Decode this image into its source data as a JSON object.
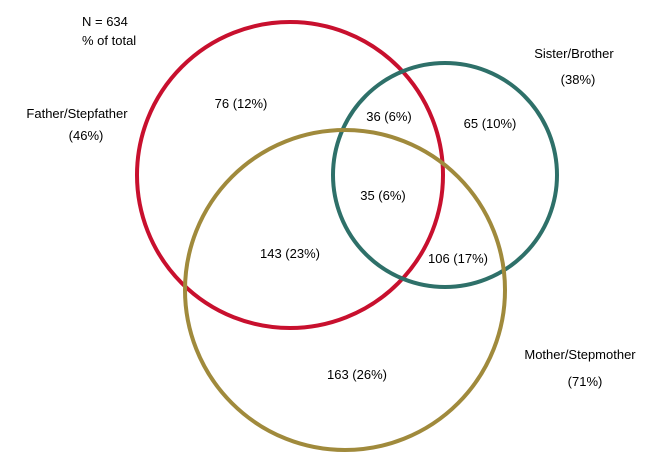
{
  "header": {
    "n_label": "N = 634",
    "unit_label": "% of total"
  },
  "sets": [
    {
      "id": "father",
      "name": "Father/Stepfather",
      "share": "(46%)",
      "color": "#c8102e"
    },
    {
      "id": "sibling",
      "name": "Sister/Brother",
      "share": "(38%)",
      "color": "#2e7069"
    },
    {
      "id": "mother",
      "name": "Mother/Stepmother",
      "share": "(71%)",
      "color": "#a08a3c"
    }
  ],
  "regions": {
    "father_only": "76 (12%)",
    "father_sibling": "36 (6%)",
    "sibling_only": "65 (10%)",
    "all_three": "35 (6%)",
    "father_mother": "143 (23%)",
    "sibling_mother": "106 (17%)",
    "mother_only": "163 (26%)"
  }
}
